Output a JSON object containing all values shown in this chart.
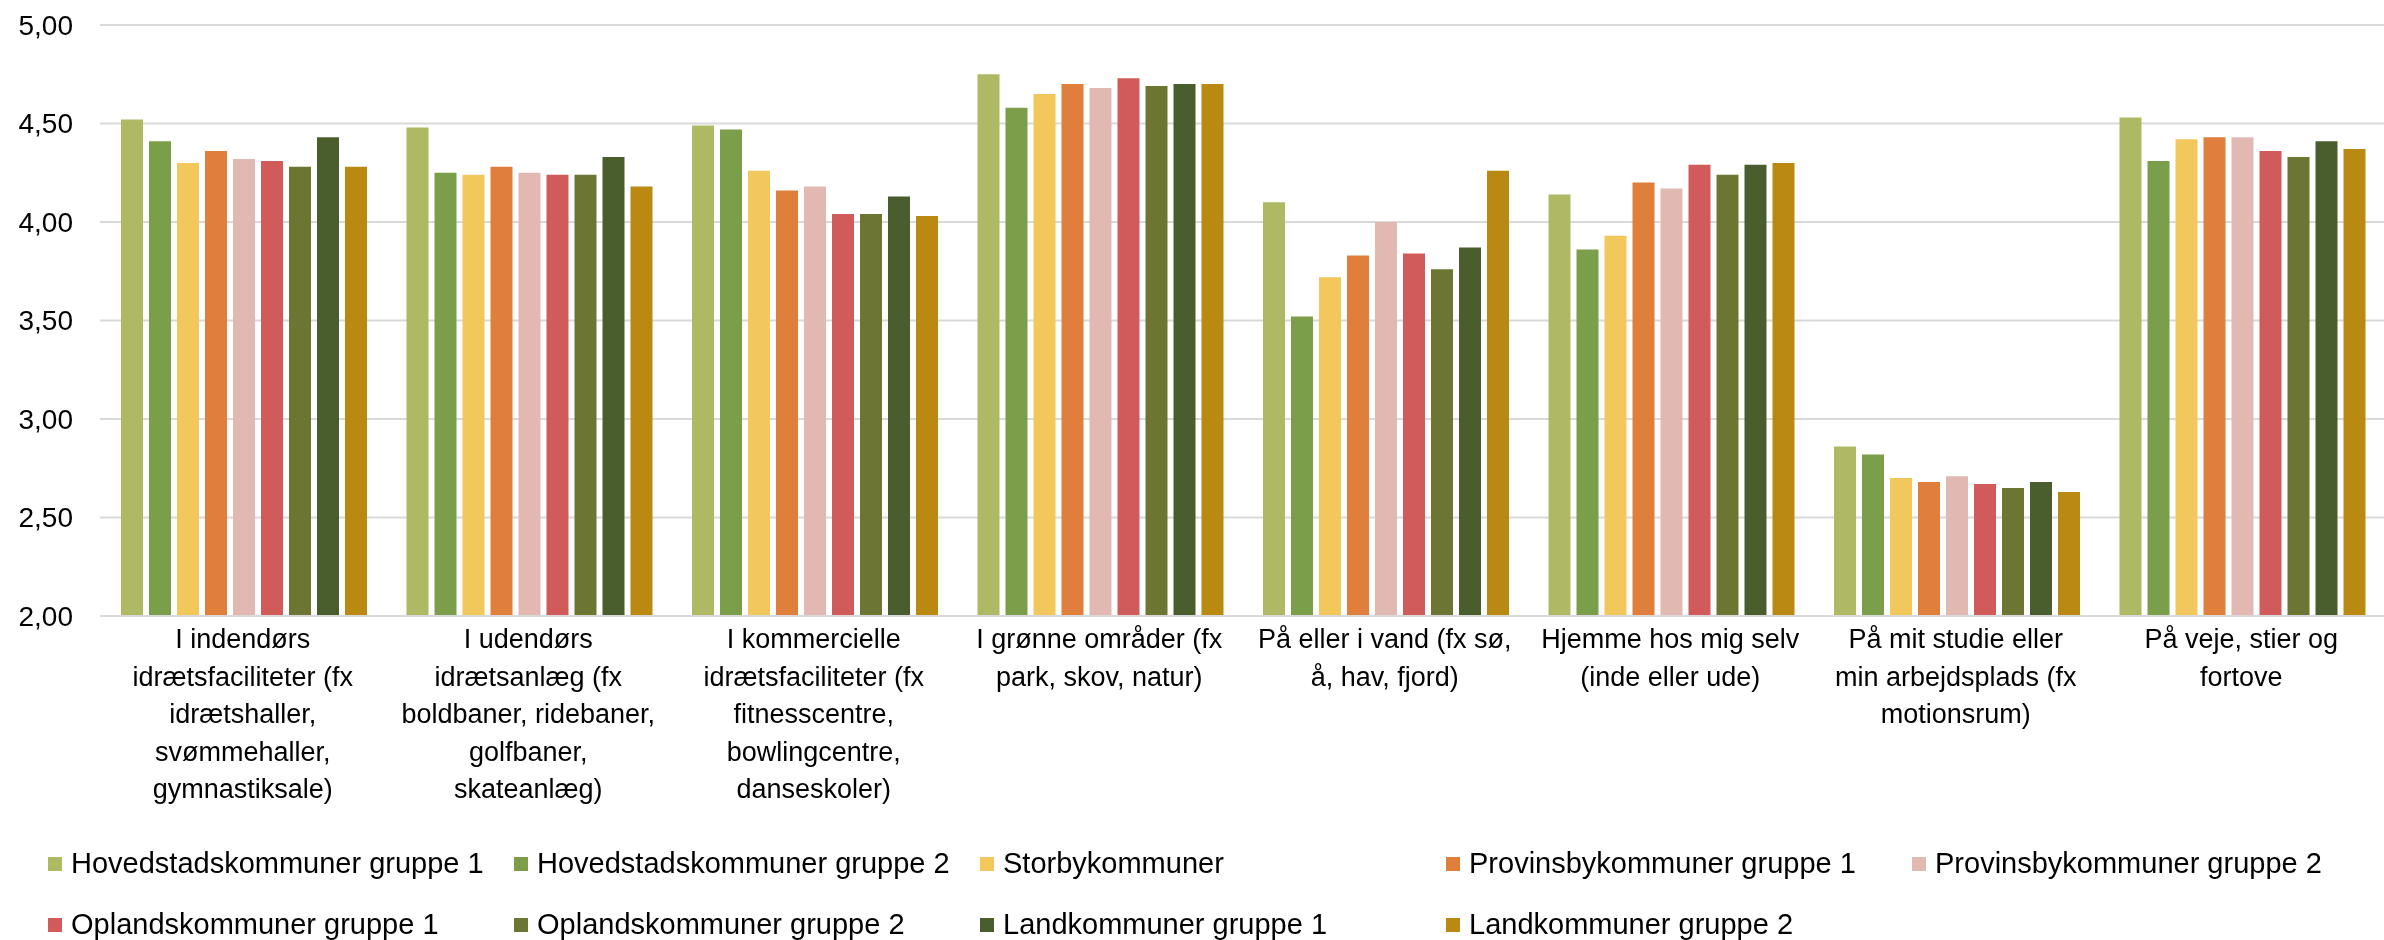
{
  "chart_data": {
    "type": "bar",
    "categories": [
      "I indendørs idrætsfaciliteter (fx idrætshaller, svømmehaller, gymnastiksale)",
      "I udendørs idrætsanlæg (fx boldbaner, ridebaner, golfbaner, skateanlæg)",
      "I kommercielle idrætsfaciliteter (fx fitnesscentre, bowlingcentre, danseskoler)",
      "I grønne områder (fx park, skov, natur)",
      "På eller i vand (fx sø, å, hav, fjord)",
      "Hjemme hos mig selv (inde eller ude)",
      "På mit studie eller min arbejdsplads (fx motionsrum)",
      "På veje, stier og fortove"
    ],
    "series": [
      {
        "name": "Hovedstadskommuner gruppe 1",
        "color": "#afb963",
        "values": [
          4.52,
          4.48,
          4.49,
          4.75,
          4.1,
          4.14,
          2.86,
          4.53
        ]
      },
      {
        "name": "Hovedstadskommuner gruppe 2",
        "color": "#7a9e4a",
        "values": [
          4.41,
          4.25,
          4.47,
          4.58,
          3.52,
          3.86,
          2.82,
          4.31
        ]
      },
      {
        "name": "Storbykommuner",
        "color": "#f2c75c",
        "values": [
          4.3,
          4.24,
          4.26,
          4.65,
          3.72,
          3.93,
          2.7,
          4.42
        ]
      },
      {
        "name": "Provinsbykommuner gruppe 1",
        "color": "#e07e3c",
        "values": [
          4.36,
          4.28,
          4.16,
          4.7,
          3.83,
          4.2,
          2.68,
          4.43
        ]
      },
      {
        "name": "Provinsbykommuner gruppe 2",
        "color": "#e2b9b2",
        "values": [
          4.32,
          4.25,
          4.18,
          4.68,
          4.0,
          4.17,
          2.71,
          4.43
        ]
      },
      {
        "name": "Oplandskommuner gruppe 1",
        "color": "#d15a5a",
        "values": [
          4.31,
          4.24,
          4.04,
          4.73,
          3.84,
          4.29,
          2.67,
          4.36
        ]
      },
      {
        "name": "Oplandskommuner gruppe 2",
        "color": "#6d7533",
        "values": [
          4.28,
          4.24,
          4.04,
          4.69,
          3.76,
          4.24,
          2.65,
          4.33
        ]
      },
      {
        "name": "Landkommuner gruppe 1",
        "color": "#4a5e2d",
        "values": [
          4.43,
          4.33,
          4.13,
          4.7,
          3.87,
          4.29,
          2.68,
          4.41
        ]
      },
      {
        "name": "Landkommuner gruppe 2",
        "color": "#ba8912",
        "values": [
          4.28,
          4.18,
          4.03,
          4.7,
          4.26,
          4.3,
          2.63,
          4.37
        ]
      }
    ],
    "ylim": [
      2,
      5
    ],
    "yticks": [
      {
        "value": 2,
        "label": "2,00"
      },
      {
        "value": 2.5,
        "label": "2,50"
      },
      {
        "value": 3,
        "label": "3,00"
      },
      {
        "value": 3.5,
        "label": "3,50"
      },
      {
        "value": 4,
        "label": "4,00"
      },
      {
        "value": 4.5,
        "label": "4,50"
      },
      {
        "value": 5,
        "label": "5,00"
      }
    ],
    "grid": "y",
    "legend": "bottom"
  }
}
